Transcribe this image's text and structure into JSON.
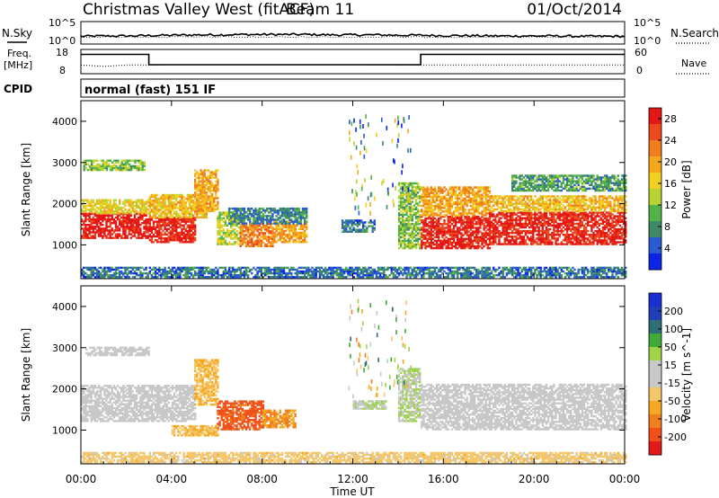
{
  "header": {
    "station": "Christmas Valley West (fitACF)",
    "beam": "Beam 11",
    "date": "01/Oct/2014"
  },
  "strip_labels": {
    "nsky": "N.Sky",
    "nsearch": "N.Search",
    "freq_line1": "Freq.",
    "freq_line2": "[MHz]",
    "nave": "Nave",
    "cpid": "CPID",
    "cpid_value": "normal (fast) 151 IF"
  },
  "strip_ticks": {
    "noise_left": [
      "10^5",
      "10^0"
    ],
    "noise_right": [
      "10^5",
      "10^0"
    ],
    "freq_left": [
      "18",
      "8"
    ],
    "freq_right": [
      "60",
      "0"
    ]
  },
  "colors": {
    "power_scale": [
      "#0b24e6",
      "#2a5bd0",
      "#3e8a66",
      "#53b24a",
      "#b8d332",
      "#f2d020",
      "#f5a81a",
      "#f07d1e",
      "#ec4a1e",
      "#e51616"
    ],
    "velocity_scale": [
      "#e31a1c",
      "#f0501c",
      "#f07f20",
      "#f5a820",
      "#f5c76a",
      "#c8c8c8",
      "#c8c8c8",
      "#9ed34a",
      "#3faa38",
      "#2f6d78",
      "#1f3fb6",
      "#1a2fd0"
    ]
  },
  "chart_data": [
    {
      "type": "line",
      "panel": "noise",
      "series": [
        {
          "name": "N.Sky",
          "x": [
            0,
            1,
            2,
            3,
            4,
            5,
            6,
            7,
            8,
            9,
            10,
            11,
            12,
            13,
            14,
            15,
            16,
            17,
            18,
            19,
            20,
            21,
            22,
            23,
            24
          ],
          "y_log10": [
            1.4,
            1.5,
            1.5,
            1.6,
            1.7,
            1.8,
            1.8,
            1.9,
            1.9,
            1.9,
            1.9,
            1.8,
            1.8,
            1.8,
            1.7,
            1.7,
            1.6,
            1.6,
            1.5,
            1.5,
            1.5,
            1.5,
            1.4,
            1.4,
            1.4
          ]
        },
        {
          "name": "N.Search"
        }
      ],
      "xlim": [
        0,
        24
      ],
      "ylim": [
        0,
        5
      ],
      "y_scale": "log"
    },
    {
      "type": "line",
      "panel": "frequency",
      "series": [
        {
          "name": "Freq.",
          "x": [
            0,
            3,
            3,
            15,
            15,
            24
          ],
          "y": [
            16.5,
            16.5,
            11.5,
            11.5,
            16.5,
            16.5
          ]
        },
        {
          "name": "Nave",
          "x": [
            0,
            0.5,
            1,
            2,
            3,
            4,
            8,
            12,
            15,
            16,
            20,
            24
          ],
          "y": [
            20,
            18,
            16,
            20,
            20,
            21,
            21,
            21,
            20,
            20,
            20,
            20
          ]
        }
      ],
      "xlim": [
        0,
        24
      ],
      "ylim_left": [
        8,
        18
      ],
      "ylim_right": [
        0,
        60
      ]
    },
    {
      "type": "heatmap",
      "panel": "power",
      "ylabel": "Slant Range [km]",
      "xlim": [
        0,
        24
      ],
      "ylim": [
        180,
        4500
      ],
      "yticks": [
        1000,
        2000,
        3000,
        4000
      ],
      "colorbar": {
        "label": "Power [dB]",
        "ticks": [
          4,
          8,
          12,
          16,
          20,
          24,
          28
        ],
        "range": [
          0,
          30
        ]
      },
      "regions": [
        {
          "t0": 0.0,
          "t1": 3.0,
          "r0": 1150,
          "r1": 1750,
          "v": 29
        },
        {
          "t0": 0.0,
          "t1": 3.0,
          "r0": 1750,
          "r1": 2100,
          "v": 16
        },
        {
          "t0": 0.1,
          "t1": 2.8,
          "r0": 2800,
          "r1": 3050,
          "v": 12
        },
        {
          "t0": 3.0,
          "t1": 5.0,
          "r0": 1050,
          "r1": 1650,
          "v": 28
        },
        {
          "t0": 3.0,
          "t1": 5.5,
          "r0": 1650,
          "r1": 2200,
          "v": 18
        },
        {
          "t0": 5.0,
          "t1": 6.0,
          "r0": 1800,
          "r1": 2800,
          "v": 20
        },
        {
          "t0": 6.0,
          "t1": 7.0,
          "r0": 1000,
          "r1": 1800,
          "v": 14
        },
        {
          "t0": 7.0,
          "t1": 8.5,
          "r0": 950,
          "r1": 1500,
          "v": 22
        },
        {
          "t0": 8.5,
          "t1": 10.0,
          "r0": 1050,
          "r1": 1550,
          "v": 20
        },
        {
          "t0": 6.5,
          "t1": 10.0,
          "r0": 1500,
          "r1": 1900,
          "v": 7
        },
        {
          "t0": 11.5,
          "t1": 13.0,
          "r0": 1300,
          "r1": 1600,
          "v": 6
        },
        {
          "t0": 14.0,
          "t1": 15.0,
          "r0": 900,
          "r1": 2500,
          "v": 12
        },
        {
          "t0": 15.0,
          "t1": 18.0,
          "r0": 900,
          "r1": 1700,
          "v": 28
        },
        {
          "t0": 15.0,
          "t1": 18.0,
          "r0": 1700,
          "r1": 2400,
          "v": 20
        },
        {
          "t0": 18.0,
          "t1": 24.0,
          "r0": 1000,
          "r1": 1800,
          "v": 28
        },
        {
          "t0": 18.0,
          "t1": 24.0,
          "r0": 1800,
          "r1": 2200,
          "v": 18
        },
        {
          "t0": 19.0,
          "t1": 24.0,
          "r0": 2300,
          "r1": 2700,
          "v": 9
        },
        {
          "t0": 0.0,
          "t1": 24.0,
          "r0": 200,
          "r1": 450,
          "v": 6
        }
      ]
    },
    {
      "type": "heatmap",
      "panel": "velocity",
      "ylabel": "Slant Range [km]",
      "xlabel": "Time UT",
      "xlim": [
        0,
        24
      ],
      "ylim": [
        180,
        4500
      ],
      "yticks": [
        1000,
        2000,
        3000,
        4000
      ],
      "xticks": [
        "00:00",
        "04:00",
        "08:00",
        "12:00",
        "16:00",
        "20:00",
        "00:00"
      ],
      "colorbar": {
        "label": "Velocity [m s^-1]",
        "ticks": [
          200,
          100,
          50,
          15,
          -15,
          -50,
          -100,
          -200
        ],
        "range": [
          -250,
          250
        ]
      },
      "regions": [
        {
          "t0": 0.0,
          "t1": 5.0,
          "r0": 1200,
          "r1": 2100,
          "v": 0
        },
        {
          "t0": 0.2,
          "t1": 3.0,
          "r0": 2800,
          "r1": 3000,
          "v": 0
        },
        {
          "t0": 5.0,
          "t1": 6.0,
          "r0": 1600,
          "r1": 2700,
          "v": -80
        },
        {
          "t0": 6.0,
          "t1": 8.0,
          "r0": 1000,
          "r1": 1700,
          "v": -180
        },
        {
          "t0": 8.0,
          "t1": 9.5,
          "r0": 1050,
          "r1": 1500,
          "v": -120
        },
        {
          "t0": 4.0,
          "t1": 6.0,
          "r0": 850,
          "r1": 1100,
          "v": -80
        },
        {
          "t0": 12.0,
          "t1": 13.5,
          "r0": 1500,
          "r1": 1700,
          "v": 40
        },
        {
          "t0": 14.0,
          "t1": 15.0,
          "r0": 1200,
          "r1": 2500,
          "v": 40
        },
        {
          "t0": 15.0,
          "t1": 24.0,
          "r0": 1000,
          "r1": 2100,
          "v": 0
        },
        {
          "t0": 0.0,
          "t1": 24.0,
          "r0": 200,
          "r1": 450,
          "v": -60
        }
      ]
    }
  ]
}
